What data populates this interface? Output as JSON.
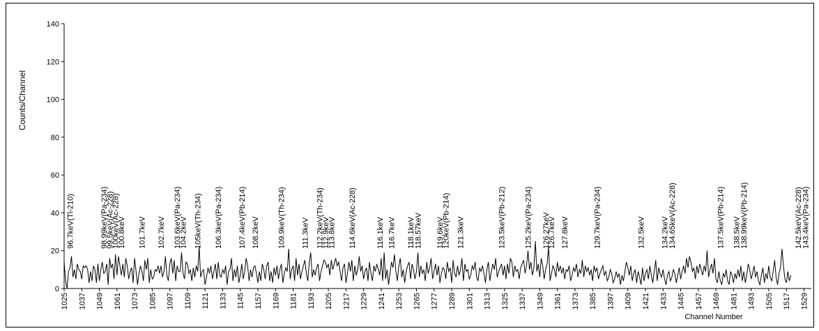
{
  "chart_data": {
    "type": "line",
    "title": "",
    "xlabel": "Channel Number",
    "ylabel": "Counts/Channel",
    "ylim": [
      0,
      140
    ],
    "yticks": [
      0,
      20,
      40,
      60,
      80,
      100,
      120,
      140
    ],
    "xlim": [
      1025,
      1534
    ],
    "xticks": [
      1025,
      1037,
      1049,
      1061,
      1073,
      1085,
      1097,
      1109,
      1121,
      1133,
      1145,
      1157,
      1169,
      1181,
      1193,
      1205,
      1217,
      1229,
      1241,
      1253,
      1265,
      1277,
      1289,
      1301,
      1313,
      1325,
      1337,
      1349,
      1361,
      1373,
      1385,
      1397,
      1409,
      1421,
      1433,
      1445,
      1457,
      1469,
      1481,
      1493,
      1505,
      1517,
      1529
    ],
    "grid": false,
    "legend": "none",
    "line_color": "#000000",
    "series": [
      {
        "x_start": 1025,
        "x_step": 1,
        "values": [
          14,
          4,
          0,
          9,
          11,
          17,
          6,
          10,
          5,
          13,
          10,
          9,
          5,
          12,
          11,
          12,
          10,
          3,
          9,
          4,
          12,
          10,
          3,
          13,
          4,
          10,
          14,
          8,
          9,
          13,
          2,
          16,
          11,
          13,
          5,
          18,
          7,
          17,
          12,
          7,
          13,
          6,
          16,
          12,
          5,
          9,
          11,
          3,
          16,
          9,
          2,
          8,
          12,
          9,
          4,
          15,
          10,
          16,
          3,
          10,
          5,
          6,
          10,
          9,
          12,
          8,
          12,
          6,
          9,
          17,
          7,
          4,
          13,
          16,
          8,
          15,
          4,
          12,
          9,
          9,
          19,
          8,
          5,
          14,
          13,
          8,
          10,
          4,
          11,
          6,
          12,
          9,
          22,
          6,
          9,
          10,
          2,
          6,
          11,
          8,
          12,
          5,
          9,
          13,
          5,
          14,
          7,
          6,
          10,
          8,
          12,
          2,
          9,
          10,
          16,
          4,
          10,
          6,
          12,
          3,
          7,
          13,
          5,
          9,
          16,
          12,
          4,
          10,
          6,
          11,
          12,
          8,
          3,
          9,
          4,
          13,
          10,
          5,
          12,
          14,
          4,
          9,
          3,
          11,
          7,
          12,
          5,
          10,
          13,
          3,
          8,
          11,
          9,
          21,
          5,
          10,
          12,
          4,
          16,
          7,
          13,
          5,
          9,
          12,
          15,
          8,
          4,
          14,
          19,
          6,
          10,
          7,
          11,
          13,
          4,
          9,
          12,
          15,
          14,
          11,
          13,
          7,
          15,
          10,
          13,
          16,
          12,
          14,
          9,
          4,
          11,
          13,
          3,
          8,
          14,
          9,
          15,
          4,
          12,
          7,
          10,
          17,
          9,
          12,
          5,
          9,
          11,
          4,
          14,
          8,
          4,
          12,
          9,
          13,
          10,
          7,
          16,
          4,
          19,
          5,
          10,
          2,
          8,
          14,
          11,
          18,
          9,
          4,
          12,
          16,
          6,
          10,
          3,
          9,
          12,
          14,
          5,
          13,
          10,
          5,
          9,
          19,
          6,
          12,
          8,
          10,
          4,
          14,
          8,
          11,
          16,
          5,
          9,
          13,
          7,
          12,
          3,
          8,
          11,
          10,
          5,
          14,
          9,
          11,
          3,
          15,
          8,
          6,
          12,
          7,
          10,
          16,
          4,
          13,
          9,
          10,
          5,
          7,
          12,
          10,
          14,
          6,
          4,
          11,
          9,
          12,
          8,
          3,
          10,
          14,
          4,
          9,
          13,
          10,
          16,
          6,
          9,
          11,
          13,
          7,
          12,
          5,
          13,
          8,
          16,
          14,
          6,
          12,
          9,
          10,
          5,
          11,
          13,
          15,
          8,
          12,
          20,
          10,
          14,
          7,
          11,
          25,
          9,
          13,
          6,
          16,
          12,
          5,
          10,
          13,
          22,
          4,
          8,
          12,
          10,
          6,
          14,
          9,
          12,
          8,
          11,
          5,
          10,
          9,
          12,
          4,
          7,
          11,
          9,
          13,
          6,
          10,
          8,
          15,
          6,
          12,
          9,
          11,
          7,
          10,
          4,
          12,
          9,
          11,
          5,
          8,
          10,
          12,
          7,
          9,
          4,
          6,
          10,
          8,
          3,
          5,
          9,
          6,
          8,
          2,
          7,
          4,
          9,
          14,
          11,
          7,
          12,
          4,
          8,
          10,
          3,
          9,
          6,
          2,
          11,
          4,
          8,
          10,
          5,
          12,
          7,
          3,
          9,
          15,
          4,
          11,
          8,
          6,
          10,
          5,
          2,
          7,
          9,
          4,
          6,
          10,
          8,
          3,
          7,
          11,
          5,
          9,
          12,
          8,
          16,
          11,
          17,
          14,
          9,
          11,
          5,
          12,
          8,
          13,
          10,
          7,
          12,
          9,
          20,
          6,
          10,
          13,
          8,
          16,
          5,
          3,
          9,
          4,
          2,
          8,
          6,
          10,
          4,
          2,
          9,
          7,
          3,
          8,
          5,
          10,
          6,
          12,
          4,
          9,
          3,
          7,
          13,
          10,
          5,
          8,
          12,
          6,
          9,
          4,
          2,
          7,
          11,
          3,
          8,
          5,
          12,
          6,
          4,
          9,
          15,
          6,
          2,
          8,
          11,
          21,
          12,
          5,
          3,
          9,
          4,
          7
        ]
      }
    ],
    "annotations": [
      {
        "x": 1029,
        "text": "96.7keV(Tl-210)"
      },
      {
        "x": 1052,
        "text": "98.99keV(Pa-234)"
      },
      {
        "x": 1056,
        "text": "99.5keV(Ac-228)"
      },
      {
        "x": 1060,
        "text": "100keV(Ac-228)"
      },
      {
        "x": 1064,
        "text": "100.8keV"
      },
      {
        "x": 1078,
        "text": "101.7keV"
      },
      {
        "x": 1091,
        "text": "102.7keV"
      },
      {
        "x": 1102,
        "text": "103.6keV(Pa-234)"
      },
      {
        "x": 1106,
        "text": "104.2keV"
      },
      {
        "x": 1116,
        "text": "105keV(Th-234)"
      },
      {
        "x": 1130,
        "text": "106.3keV(Pa-234)"
      },
      {
        "x": 1146,
        "text": "107.4keV(Pb-214)"
      },
      {
        "x": 1155,
        "text": "108.2keV"
      },
      {
        "x": 1173,
        "text": "109.9keV(Th-234)"
      },
      {
        "x": 1189,
        "text": "111.3keV"
      },
      {
        "x": 1199,
        "text": "112.2keV(Th-234)"
      },
      {
        "x": 1203,
        "text": "112.9keV"
      },
      {
        "x": 1207,
        "text": "113.8keV"
      },
      {
        "x": 1221,
        "text": "114.6keV(Ac-228)"
      },
      {
        "x": 1240,
        "text": "116.1keV"
      },
      {
        "x": 1248,
        "text": "116.7keV"
      },
      {
        "x": 1261,
        "text": "118.1keV"
      },
      {
        "x": 1266,
        "text": "118.57keV"
      },
      {
        "x": 1281,
        "text": "119.6keV"
      },
      {
        "x": 1285,
        "text": "120keV(Pb-214)"
      },
      {
        "x": 1295,
        "text": "121.3keV"
      },
      {
        "x": 1323,
        "text": "123.5keV(Pb-212)"
      },
      {
        "x": 1341,
        "text": "125.2keV(Pa-234)"
      },
      {
        "x": 1353,
        "text": "126.27keV"
      },
      {
        "x": 1357,
        "text": "126.7keV"
      },
      {
        "x": 1366,
        "text": "127.8keV"
      },
      {
        "x": 1388,
        "text": "129.7keV(Pa-234)"
      },
      {
        "x": 1418,
        "text": "132.5keV"
      },
      {
        "x": 1434,
        "text": "134.2keV"
      },
      {
        "x": 1439,
        "text": "134.65keV(Ac-228)"
      },
      {
        "x": 1472,
        "text": "137.5keV(Pb-214)"
      },
      {
        "x": 1483,
        "text": "138.5keV"
      },
      {
        "x": 1488,
        "text": "138.99keV(Pb-214)"
      },
      {
        "x": 1525,
        "text": "142.5keV(Ac-228)"
      },
      {
        "x": 1530,
        "text": "143.4keV(Pa-234)"
      }
    ]
  }
}
